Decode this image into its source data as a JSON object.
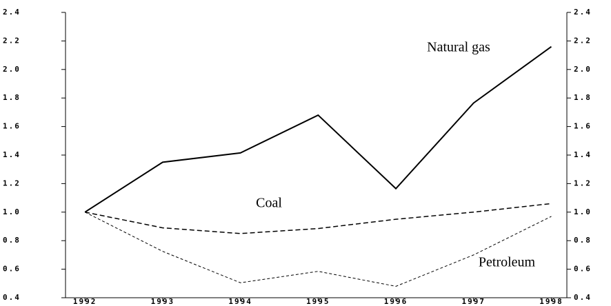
{
  "chart_data": {
    "type": "line",
    "x": [
      1992,
      1993,
      1994,
      1995,
      1996,
      1997,
      1998
    ],
    "xlim": [
      1991.75,
      1998.2
    ],
    "xticks": [
      1992,
      1993,
      1994,
      1995,
      1996,
      1997,
      1998
    ],
    "ylim": [
      0.4,
      2.4
    ],
    "yticks": [
      0.4,
      0.6,
      0.8,
      {
        "value": 1,
        "label": "1.0"
      },
      1.2,
      1.4,
      1.6,
      1.8,
      {
        "value": 2,
        "label": "2.0"
      },
      2.2,
      2.4
    ],
    "y2lim": [
      0.4,
      2.4
    ],
    "y2ticks": [
      0.4,
      0.6,
      0.8,
      {
        "value": 1,
        "label": "1.0"
      },
      1.2,
      1.4,
      1.6,
      1.8,
      {
        "value": 2,
        "label": "2.0"
      },
      2.2,
      2.4
    ],
    "grid": false,
    "series": [
      {
        "name": "Natural gas",
        "color": "#000000",
        "style": "solid",
        "values": [
          1.0,
          1.35,
          1.415,
          1.68,
          1.165,
          1.765,
          2.16
        ]
      },
      {
        "name": "Coal",
        "color": "#000000",
        "style": "dashed",
        "values": [
          1.0,
          0.89,
          0.85,
          0.885,
          0.95,
          1.0,
          1.06
        ]
      },
      {
        "name": "Petroleum",
        "color": "#000000",
        "style": "dotted",
        "values": [
          1.0,
          0.725,
          0.505,
          0.585,
          0.48,
          0.7,
          0.97
        ]
      }
    ]
  }
}
